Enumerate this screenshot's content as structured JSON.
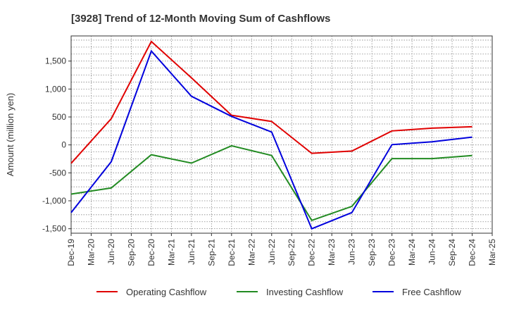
{
  "chart_data": {
    "type": "line",
    "title": "[3928]  Trend of 12-Month Moving Sum of Cashflows",
    "ylabel": "Amount (million yen)",
    "xlabel": "",
    "ylim": [
      -1580,
      1950
    ],
    "yticks": [
      -1500,
      -1000,
      -500,
      0,
      500,
      1000,
      1500
    ],
    "ytick_labels": [
      "-1,500",
      "-1,000",
      "-500",
      "0",
      "500",
      "1,000",
      "1,500"
    ],
    "categories": [
      "Dec-19",
      "Mar-20",
      "Jun-20",
      "Sep-20",
      "Dec-20",
      "Mar-21",
      "Jun-21",
      "Sep-21",
      "Dec-21",
      "Mar-22",
      "Jun-22",
      "Sep-22",
      "Dec-22",
      "Mar-23",
      "Jun-23",
      "Sep-23",
      "Dec-23",
      "Mar-24",
      "Jun-24",
      "Sep-24",
      "Dec-24",
      "Mar-25"
    ],
    "grid": true,
    "legend_position": "bottom",
    "series": [
      {
        "name": "Operating Cashflow",
        "color": "#e00000",
        "values": [
          -330,
          null,
          470,
          null,
          1850,
          null,
          1200,
          null,
          530,
          null,
          420,
          null,
          -150,
          null,
          -110,
          null,
          250,
          null,
          300,
          null,
          325,
          null
        ]
      },
      {
        "name": "Investing Cashflow",
        "color": "#228b22",
        "values": [
          -880,
          null,
          -770,
          null,
          -175,
          null,
          -325,
          null,
          -15,
          null,
          -190,
          null,
          -1350,
          null,
          -1100,
          null,
          -245,
          null,
          -245,
          null,
          -190,
          null
        ]
      },
      {
        "name": "Free Cashflow",
        "color": "#0000dd",
        "values": [
          -1210,
          null,
          -300,
          null,
          1680,
          null,
          870,
          null,
          510,
          null,
          230,
          null,
          -1500,
          null,
          -1210,
          null,
          5,
          null,
          55,
          null,
          140,
          null
        ]
      }
    ]
  }
}
